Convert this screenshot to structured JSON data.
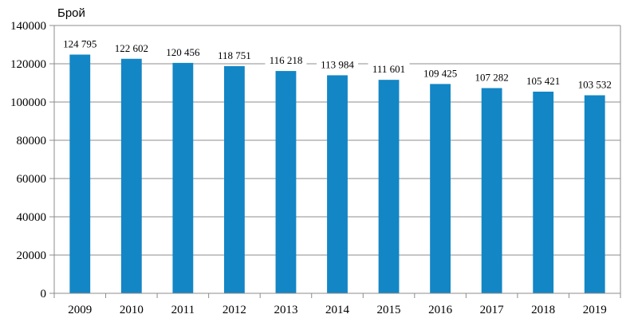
{
  "chart_data": {
    "type": "bar",
    "ylabel": "Брой",
    "xlabel": "",
    "categories": [
      "2009",
      "2010",
      "2011",
      "2012",
      "2013",
      "2014",
      "2015",
      "2016",
      "2017",
      "2018",
      "2019"
    ],
    "values": [
      124795,
      122602,
      120456,
      118751,
      116218,
      113984,
      111601,
      109425,
      107282,
      105421,
      103532
    ],
    "data_labels": [
      "124 795",
      "122 602",
      "120 456",
      "118 751",
      "116 218",
      "113 984",
      "111 601",
      "109 425",
      "107 282",
      "105 421",
      "103 532"
    ],
    "ylim": [
      0,
      140000
    ],
    "yticks": [
      "0",
      "20000",
      "40000",
      "60000",
      "80000",
      "100000",
      "120000",
      "140000"
    ],
    "grid": true,
    "legend": false,
    "bar_color": "#1386C5"
  }
}
